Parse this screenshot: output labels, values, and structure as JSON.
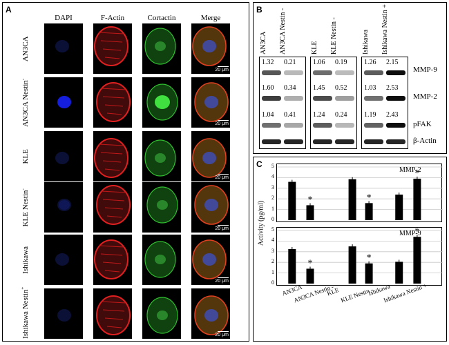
{
  "panelA": {
    "letter": "A",
    "columns": [
      "DAPI",
      "F-Actin",
      "Cortactin",
      "Merge"
    ],
    "rows": [
      {
        "label": "AN3CA",
        "sup": ""
      },
      {
        "label": "AN3CA Nestin",
        "sup": "-"
      },
      {
        "label": "KLE",
        "sup": ""
      },
      {
        "label": "KLE Nestin",
        "sup": "-"
      },
      {
        "label": "Ishikawa",
        "sup": ""
      },
      {
        "label": "Ishikawa Nestin",
        "sup": "+"
      }
    ],
    "scale_label": "20 μm"
  },
  "panelB": {
    "letter": "B",
    "groups": [
      {
        "lanes": [
          "AN3CA",
          "AN3CA Nestin -"
        ],
        "values": {
          "MMP-9": [
            "1.32",
            "0.21"
          ],
          "MMP-2": [
            "1.60",
            "0.34"
          ],
          "pFAK": [
            "1.04",
            "0.41"
          ]
        }
      },
      {
        "lanes": [
          "KLE",
          "KLE Nestin -"
        ],
        "values": {
          "MMP-9": [
            "1.06",
            "0.19"
          ],
          "MMP-2": [
            "1.45",
            "0.52"
          ],
          "pFAK": [
            "1.24",
            "0.24"
          ]
        }
      },
      {
        "lanes": [
          "Ishikawa",
          "Ishikawa Nestin +"
        ],
        "values": {
          "MMP-9": [
            "1.26",
            "2.15"
          ],
          "MMP-2": [
            "1.03",
            "2.53"
          ],
          "pFAK": [
            "1.19",
            "2.43"
          ]
        }
      }
    ],
    "proteins": [
      "MMP-9",
      "MMP-2",
      "pFAK",
      "β-Actin"
    ]
  },
  "panelC": {
    "letter": "C"
  },
  "chart_data": [
    {
      "type": "bar",
      "title": "MMP-2",
      "categories": [
        "AN3CA",
        "AN3CA Nestin -",
        "KLE",
        "KLE Nestin -",
        "Ishikawa",
        "Ishikawa Nestin +"
      ],
      "values": [
        3.6,
        1.4,
        3.85,
        1.6,
        2.4,
        3.9
      ],
      "significant": [
        false,
        true,
        false,
        true,
        false,
        true
      ],
      "ylabel": "Activity (pg/ml)",
      "ylim": [
        0,
        5
      ],
      "yticks": [
        "0",
        "1",
        "2",
        "3",
        "4",
        "5"
      ],
      "bar_color": "#000000",
      "grid": true
    },
    {
      "type": "bar",
      "title": "MMP-9",
      "categories": [
        "AN3CA",
        "AN3CA Nestin -",
        "KLE",
        "KLE Nestin -",
        "Ishikawa",
        "Ishikawa Nestin +"
      ],
      "values": [
        3.25,
        1.4,
        3.5,
        1.9,
        2.05,
        4.4
      ],
      "significant": [
        false,
        true,
        false,
        true,
        false,
        true
      ],
      "ylabel": "Activity (pg/ml)",
      "ylim": [
        0,
        5
      ],
      "yticks": [
        "0",
        "1",
        "2",
        "3",
        "4",
        "5"
      ],
      "bar_color": "#000000",
      "grid": true
    }
  ]
}
